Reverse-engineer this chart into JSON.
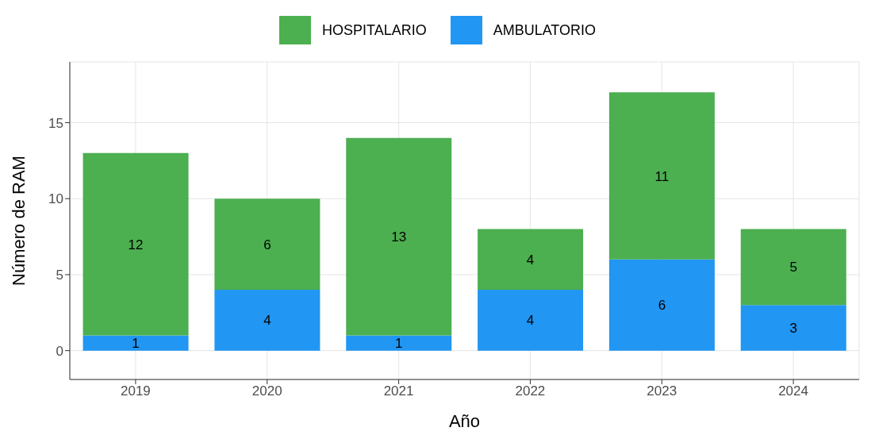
{
  "chart_data": {
    "type": "bar",
    "stacked": true,
    "xlabel": "Año",
    "ylabel": "Número de RAM",
    "categories": [
      "2019",
      "2020",
      "2021",
      "2022",
      "2023",
      "2024"
    ],
    "series": [
      {
        "name": "AMBULATORIO",
        "color": "#2196f3",
        "values": [
          1,
          4,
          1,
          4,
          6,
          3
        ]
      },
      {
        "name": "HOSPITALARIO",
        "color": "#4caf50",
        "values": [
          12,
          6,
          13,
          4,
          11,
          5
        ]
      }
    ],
    "ylim": [
      -1.9,
      19
    ],
    "yticks": [
      0,
      5,
      10,
      15
    ],
    "grid": true,
    "legend": "top",
    "data_labels": true
  }
}
